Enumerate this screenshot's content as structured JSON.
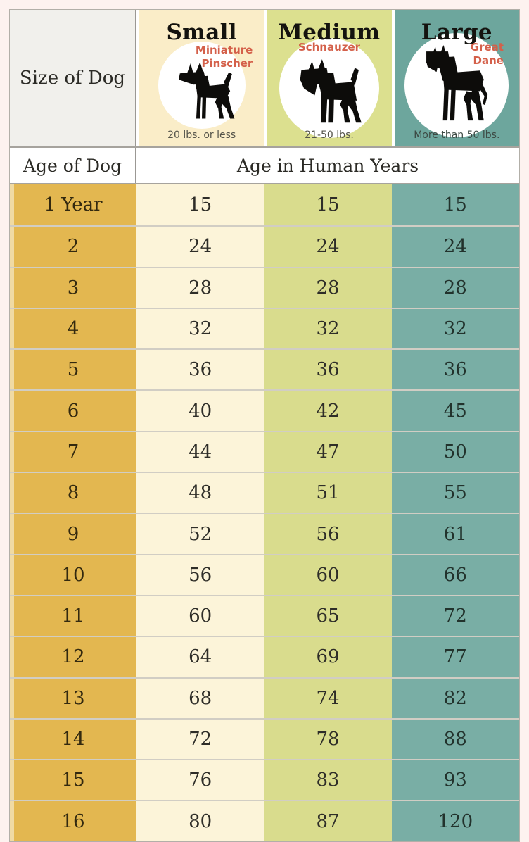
{
  "colors": {
    "page_bg": "#fdf2ef",
    "corner_bg": "#f1f0ec",
    "age_column_gold": "#e3b750",
    "small_cell_cream": "#fcf4d9",
    "medium_cell_green": "#d9dc8d",
    "large_cell_teal": "#79aea5",
    "small_header_bg": "#faedc8",
    "medium_header_bg": "#dce08f",
    "large_header_bg": "#6da69d",
    "breed_text": "#d4604a",
    "dark_text": "#2b2a25",
    "grid_border": "#9b9894"
  },
  "header": {
    "corner_label": "Size of Dog",
    "columns": [
      {
        "label": "Small",
        "breed_lines": [
          "Miniature",
          "Pinscher"
        ],
        "weight": "20 lbs. or less",
        "icon": "miniature-pinscher-silhouette"
      },
      {
        "label": "Medium",
        "breed_lines": [
          "Schnauzer"
        ],
        "weight": "21-50 lbs.",
        "icon": "schnauzer-silhouette"
      },
      {
        "label": "Large",
        "breed_lines": [
          "Great",
          "Dane"
        ],
        "weight": "More than 50 lbs.",
        "icon": "great-dane-silhouette"
      }
    ]
  },
  "subheader": {
    "age_label": "Age of Dog",
    "span_label": "Age in Human Years"
  },
  "rows": [
    {
      "age": "1 Year",
      "values": [
        "15",
        "15",
        "15"
      ]
    },
    {
      "age": "2",
      "values": [
        "24",
        "24",
        "24"
      ]
    },
    {
      "age": "3",
      "values": [
        "28",
        "28",
        "28"
      ]
    },
    {
      "age": "4",
      "values": [
        "32",
        "32",
        "32"
      ]
    },
    {
      "age": "5",
      "values": [
        "36",
        "36",
        "36"
      ]
    },
    {
      "age": "6",
      "values": [
        "40",
        "42",
        "45"
      ]
    },
    {
      "age": "7",
      "values": [
        "44",
        "47",
        "50"
      ]
    },
    {
      "age": "8",
      "values": [
        "48",
        "51",
        "55"
      ]
    },
    {
      "age": "9",
      "values": [
        "52",
        "56",
        "61"
      ]
    },
    {
      "age": "10",
      "values": [
        "56",
        "60",
        "66"
      ]
    },
    {
      "age": "11",
      "values": [
        "60",
        "65",
        "72"
      ]
    },
    {
      "age": "12",
      "values": [
        "64",
        "69",
        "77"
      ]
    },
    {
      "age": "13",
      "values": [
        "68",
        "74",
        "82"
      ]
    },
    {
      "age": "14",
      "values": [
        "72",
        "78",
        "88"
      ]
    },
    {
      "age": "15",
      "values": [
        "76",
        "83",
        "93"
      ]
    },
    {
      "age": "16",
      "values": [
        "80",
        "87",
        "120"
      ]
    }
  ],
  "chart_data": {
    "type": "table",
    "columns": [
      "Age of Dog",
      "Small (20 lbs. or less)",
      "Medium (21-50 lbs.)",
      "Large (More than 50 lbs.)"
    ],
    "row_header": "Age in Human Years",
    "dog_ages": [
      "1 Year",
      "2",
      "3",
      "4",
      "5",
      "6",
      "7",
      "8",
      "9",
      "10",
      "11",
      "12",
      "13",
      "14",
      "15",
      "16"
    ],
    "series": [
      {
        "name": "Small",
        "breed_example": "Miniature Pinscher",
        "values": [
          15,
          24,
          28,
          32,
          36,
          40,
          44,
          48,
          52,
          56,
          60,
          64,
          68,
          72,
          76,
          80
        ]
      },
      {
        "name": "Medium",
        "breed_example": "Schnauzer",
        "values": [
          15,
          24,
          28,
          32,
          36,
          42,
          47,
          51,
          56,
          60,
          65,
          69,
          74,
          78,
          83,
          87
        ]
      },
      {
        "name": "Large",
        "breed_example": "Great Dane",
        "values": [
          15,
          24,
          28,
          32,
          36,
          45,
          50,
          55,
          61,
          66,
          72,
          77,
          82,
          88,
          93,
          120
        ]
      }
    ]
  }
}
